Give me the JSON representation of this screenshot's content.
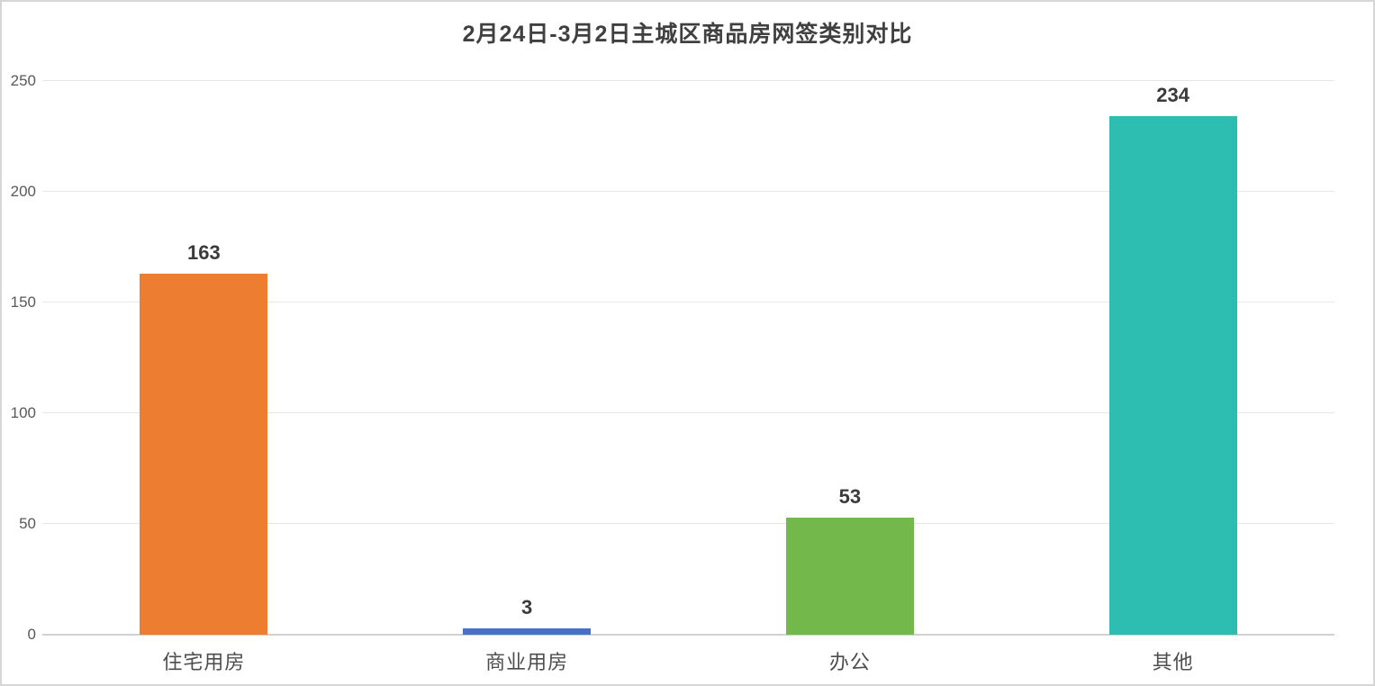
{
  "chart_data": {
    "type": "bar",
    "title": "2月24日-3月2日主城区商品房网签类别对比",
    "categories": [
      "住宅用房",
      "商业用房",
      "办公",
      "其他"
    ],
    "values": [
      163,
      3,
      53,
      234
    ],
    "bar_colors": [
      "#ed7d31",
      "#4472c4",
      "#72b84a",
      "#2ebdb1"
    ],
    "xlabel": "",
    "ylabel": "",
    "ylim": [
      0,
      250
    ],
    "yticks": [
      0,
      50,
      100,
      150,
      200,
      250
    ],
    "grid": true,
    "legend": false,
    "value_labels_shown": true
  },
  "style": {
    "gridline_color": "#e7e7e7",
    "baseline_color": "#d0d0d0",
    "title_color": "#404040",
    "tick_label_color": "#595959",
    "value_label_color": "#3b3b3b",
    "frame_border_color": "#d6d6d6",
    "background_color": "#ffffff"
  }
}
